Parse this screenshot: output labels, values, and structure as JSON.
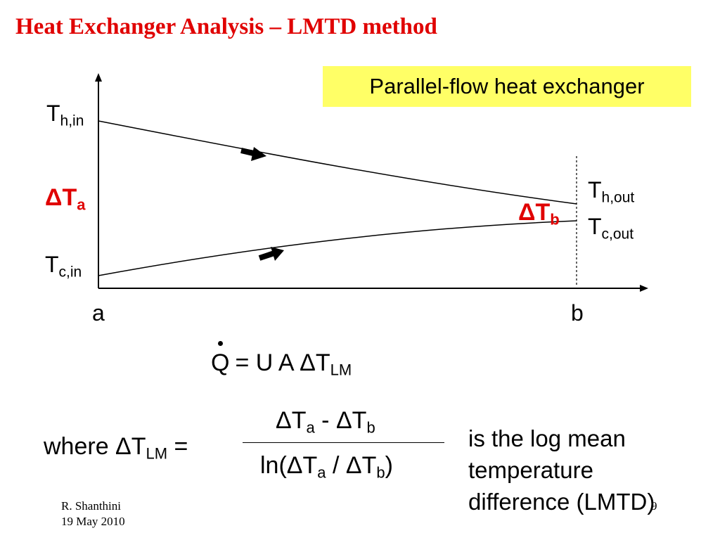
{
  "slide": {
    "title": "Heat Exchanger Analysis – LMTD method",
    "subtitle_box": "Parallel-flow heat exchanger"
  },
  "diagram": {
    "hot_in": {
      "main": "T",
      "sub": "h,in"
    },
    "hot_out": {
      "main": "T",
      "sub": "h,out"
    },
    "cold_in": {
      "main": "T",
      "sub": "c,in"
    },
    "cold_out": {
      "main": "T",
      "sub": "c,out"
    },
    "delta_a": {
      "main": "ΔT",
      "sub": "a"
    },
    "delta_b": {
      "main": "ΔT",
      "sub": "b"
    },
    "axis_start": "a",
    "axis_end": "b"
  },
  "equation_heat": {
    "q": "Q",
    "rhs": "= U A ΔT",
    "rhs_sub": "LM"
  },
  "equation_lmtd": {
    "where": "where ΔT",
    "where_sub": "LM",
    "equals": "=",
    "num_a": "ΔT",
    "num_a_sub": "a",
    "minus": " - ΔT",
    "num_b_sub": "b",
    "den_open": "ln(ΔT",
    "den_a_sub": "a",
    "den_div": " / ΔT",
    "den_b_sub": "b",
    "den_close": ")",
    "description": "is the log mean temperature difference (LMTD)"
  },
  "footer": {
    "author": "R. Shanthini",
    "date": "19 May 2010",
    "page": "9"
  },
  "colors": {
    "title": "#e00000",
    "highlight": "#ffff66",
    "delta_labels": "#e00000"
  }
}
